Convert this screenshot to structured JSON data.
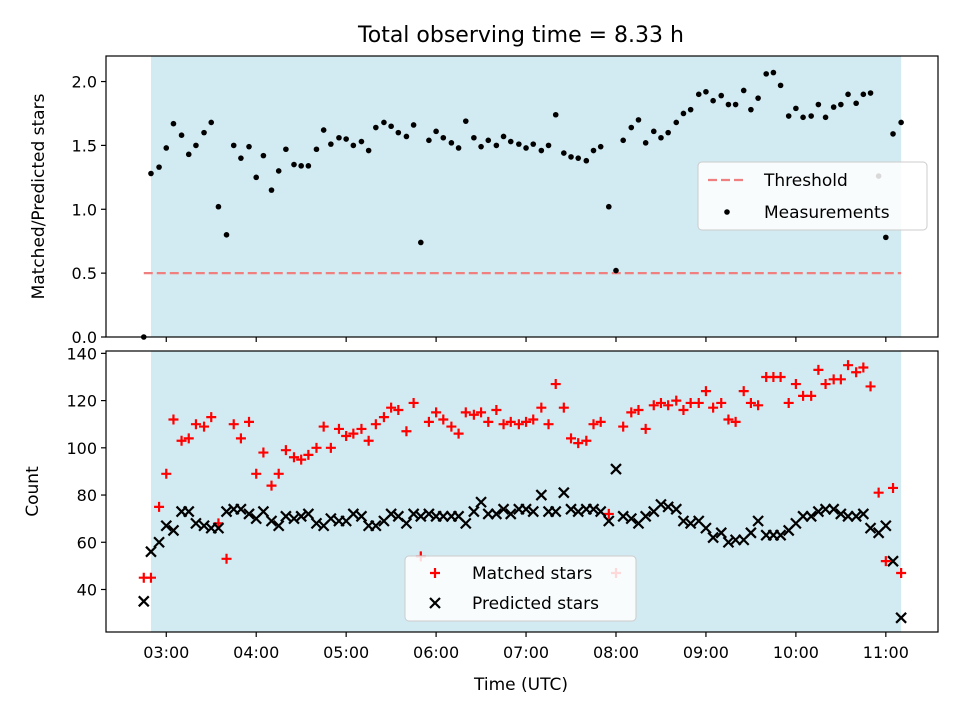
{
  "figure": {
    "title": "Total observing time = 8.33 h",
    "xlabel": "Time (UTC)",
    "x_ticks": [
      "03:00",
      "04:00",
      "05:00",
      "06:00",
      "07:00",
      "08:00",
      "09:00",
      "10:00",
      "11:00"
    ]
  },
  "colors": {
    "shade": "#add8e6",
    "threshold": "#f08080",
    "matched": "#ff0000",
    "predicted": "#000000",
    "measurement": "#000000"
  },
  "chart_data": [
    {
      "type": "scatter",
      "title": "Total observing time = 8.33 h",
      "xlabel": "",
      "ylabel": "Matched/Predicted stars",
      "x_unit": "hours UTC",
      "xlim": [
        2.33,
        11.58
      ],
      "ylim": [
        0,
        2.2
      ],
      "y_ticks": [
        "0.0",
        "0.5",
        "1.0",
        "1.5",
        "2.0"
      ],
      "observing_window": [
        2.83,
        11.17
      ],
      "legend_position": "center-right",
      "threshold": {
        "name": "Threshold",
        "value": 0.5,
        "style": "dashed"
      },
      "series": [
        {
          "name": "Measurements",
          "x": [
            2.75,
            2.83,
            2.92,
            3.0,
            3.08,
            3.17,
            3.25,
            3.33,
            3.42,
            3.5,
            3.58,
            3.67,
            3.75,
            3.83,
            3.92,
            4.0,
            4.08,
            4.17,
            4.25,
            4.33,
            4.42,
            4.5,
            4.58,
            4.67,
            4.75,
            4.83,
            4.92,
            5.0,
            5.08,
            5.17,
            5.25,
            5.33,
            5.42,
            5.5,
            5.58,
            5.67,
            5.75,
            5.83,
            5.92,
            6.0,
            6.08,
            6.17,
            6.25,
            6.33,
            6.42,
            6.5,
            6.58,
            6.67,
            6.75,
            6.83,
            6.92,
            7.0,
            7.08,
            7.17,
            7.25,
            7.33,
            7.42,
            7.5,
            7.58,
            7.67,
            7.75,
            7.83,
            7.92,
            8.0,
            8.08,
            8.17,
            8.25,
            8.33,
            8.42,
            8.5,
            8.58,
            8.67,
            8.75,
            8.83,
            8.92,
            9.0,
            9.08,
            9.17,
            9.25,
            9.33,
            9.42,
            9.5,
            9.58,
            9.67,
            9.75,
            9.83,
            9.92,
            10.0,
            10.08,
            10.17,
            10.25,
            10.33,
            10.42,
            10.5,
            10.58,
            10.67,
            10.75,
            10.83,
            10.92,
            11.0,
            11.08,
            11.17
          ],
          "y": [
            0.0,
            1.28,
            1.33,
            1.48,
            1.67,
            1.58,
            1.43,
            1.5,
            1.6,
            1.68,
            1.02,
            0.8,
            1.5,
            1.4,
            1.49,
            1.25,
            1.42,
            1.15,
            1.3,
            1.47,
            1.35,
            1.34,
            1.34,
            1.47,
            1.62,
            1.51,
            1.56,
            1.55,
            1.5,
            1.53,
            1.46,
            1.64,
            1.68,
            1.65,
            1.6,
            1.57,
            1.66,
            0.74,
            1.54,
            1.61,
            1.56,
            1.52,
            1.48,
            1.69,
            1.56,
            1.49,
            1.54,
            1.5,
            1.57,
            1.53,
            1.51,
            1.48,
            1.51,
            1.46,
            1.5,
            1.74,
            1.44,
            1.41,
            1.4,
            1.38,
            1.46,
            1.49,
            1.02,
            0.52,
            1.54,
            1.64,
            1.7,
            1.52,
            1.61,
            1.56,
            1.6,
            1.68,
            1.75,
            1.78,
            1.9,
            1.92,
            1.85,
            1.89,
            1.82,
            1.82,
            1.93,
            1.78,
            1.87,
            2.06,
            2.07,
            1.97,
            1.73,
            1.79,
            1.72,
            1.73,
            1.82,
            1.72,
            1.8,
            1.82,
            1.9,
            1.83,
            1.9,
            1.91,
            1.26,
            0.78,
            1.59,
            1.68
          ]
        }
      ]
    },
    {
      "type": "scatter",
      "title": "",
      "xlabel": "Time (UTC)",
      "ylabel": "Count",
      "x_unit": "hours UTC",
      "xlim": [
        2.33,
        11.58
      ],
      "ylim": [
        22,
        141
      ],
      "y_ticks": [
        "40",
        "60",
        "80",
        "100",
        "120",
        "140"
      ],
      "observing_window": [
        2.83,
        11.17
      ],
      "legend_position": "bottom-center",
      "series": [
        {
          "name": "Matched stars",
          "x": [
            2.75,
            2.83,
            2.92,
            3.0,
            3.08,
            3.17,
            3.25,
            3.33,
            3.42,
            3.5,
            3.58,
            3.67,
            3.75,
            3.83,
            3.92,
            4.0,
            4.08,
            4.17,
            4.25,
            4.33,
            4.42,
            4.5,
            4.58,
            4.67,
            4.75,
            4.83,
            4.92,
            5.0,
            5.08,
            5.17,
            5.25,
            5.33,
            5.42,
            5.5,
            5.58,
            5.67,
            5.75,
            5.83,
            5.92,
            6.0,
            6.08,
            6.17,
            6.25,
            6.33,
            6.42,
            6.5,
            6.58,
            6.67,
            6.75,
            6.83,
            6.92,
            7.0,
            7.08,
            7.17,
            7.25,
            7.33,
            7.42,
            7.5,
            7.58,
            7.67,
            7.75,
            7.83,
            7.92,
            8.0,
            8.08,
            8.17,
            8.25,
            8.33,
            8.42,
            8.5,
            8.58,
            8.67,
            8.75,
            8.83,
            8.92,
            9.0,
            9.08,
            9.17,
            9.25,
            9.33,
            9.42,
            9.5,
            9.58,
            9.67,
            9.75,
            9.83,
            9.92,
            10.0,
            10.08,
            10.17,
            10.25,
            10.33,
            10.42,
            10.5,
            10.58,
            10.67,
            10.75,
            10.83,
            10.92,
            11.0,
            11.08,
            11.17
          ],
          "y": [
            45,
            45,
            75,
            89,
            112,
            103,
            104,
            110,
            109,
            113,
            68,
            53,
            110,
            104,
            111,
            89,
            98,
            84,
            89,
            99,
            96,
            95,
            97,
            100,
            109,
            100,
            108,
            105,
            106,
            108,
            103,
            110,
            113,
            117,
            116,
            107,
            119,
            54,
            111,
            115,
            112,
            109,
            106,
            115,
            114,
            115,
            111,
            116,
            110,
            111,
            110,
            111,
            112,
            117,
            110,
            127,
            117,
            104,
            102,
            103,
            110,
            111,
            72,
            47,
            109,
            115,
            116,
            108,
            118,
            119,
            118,
            120,
            116,
            119,
            119,
            124,
            117,
            119,
            112,
            111,
            124,
            119,
            118,
            130,
            130,
            130,
            119,
            127,
            122,
            122,
            133,
            127,
            129,
            129,
            135,
            132,
            134,
            126,
            81,
            52,
            83,
            47
          ]
        },
        {
          "name": "Predicted stars",
          "x": [
            2.75,
            2.83,
            2.92,
            3.0,
            3.08,
            3.17,
            3.25,
            3.33,
            3.42,
            3.5,
            3.58,
            3.67,
            3.75,
            3.83,
            3.92,
            4.0,
            4.08,
            4.17,
            4.25,
            4.33,
            4.42,
            4.5,
            4.58,
            4.67,
            4.75,
            4.83,
            4.92,
            5.0,
            5.08,
            5.17,
            5.25,
            5.33,
            5.42,
            5.5,
            5.58,
            5.67,
            5.75,
            5.83,
            5.92,
            6.0,
            6.08,
            6.17,
            6.25,
            6.33,
            6.42,
            6.5,
            6.58,
            6.67,
            6.75,
            6.83,
            6.92,
            7.0,
            7.08,
            7.17,
            7.25,
            7.33,
            7.42,
            7.5,
            7.58,
            7.67,
            7.75,
            7.83,
            7.92,
            8.0,
            8.08,
            8.17,
            8.25,
            8.33,
            8.42,
            8.5,
            8.58,
            8.67,
            8.75,
            8.83,
            8.92,
            9.0,
            9.08,
            9.17,
            9.25,
            9.33,
            9.42,
            9.5,
            9.58,
            9.67,
            9.75,
            9.83,
            9.92,
            10.0,
            10.08,
            10.17,
            10.25,
            10.33,
            10.42,
            10.5,
            10.58,
            10.67,
            10.75,
            10.83,
            10.92,
            11.0,
            11.08,
            11.17
          ],
          "y": [
            35,
            56,
            60,
            67,
            65,
            73,
            73,
            68,
            67,
            66,
            66,
            73,
            74,
            74,
            72,
            70,
            73,
            69,
            67,
            71,
            70,
            71,
            72,
            68,
            67,
            70,
            69,
            69,
            72,
            71,
            67,
            67,
            69,
            72,
            71,
            68,
            72,
            71,
            72,
            71,
            71,
            71,
            71,
            68,
            73,
            77,
            72,
            72,
            74,
            72,
            74,
            74,
            73,
            80,
            73,
            73,
            81,
            74,
            73,
            74,
            74,
            73,
            69,
            91,
            71,
            70,
            68,
            71,
            73,
            76,
            75,
            74,
            69,
            68,
            69,
            66,
            62,
            64,
            60,
            61,
            61,
            64,
            69,
            63,
            63,
            63,
            65,
            68,
            71,
            71,
            73,
            74,
            74,
            72,
            71,
            71,
            72,
            66,
            64,
            67,
            52,
            28
          ]
        }
      ]
    }
  ]
}
